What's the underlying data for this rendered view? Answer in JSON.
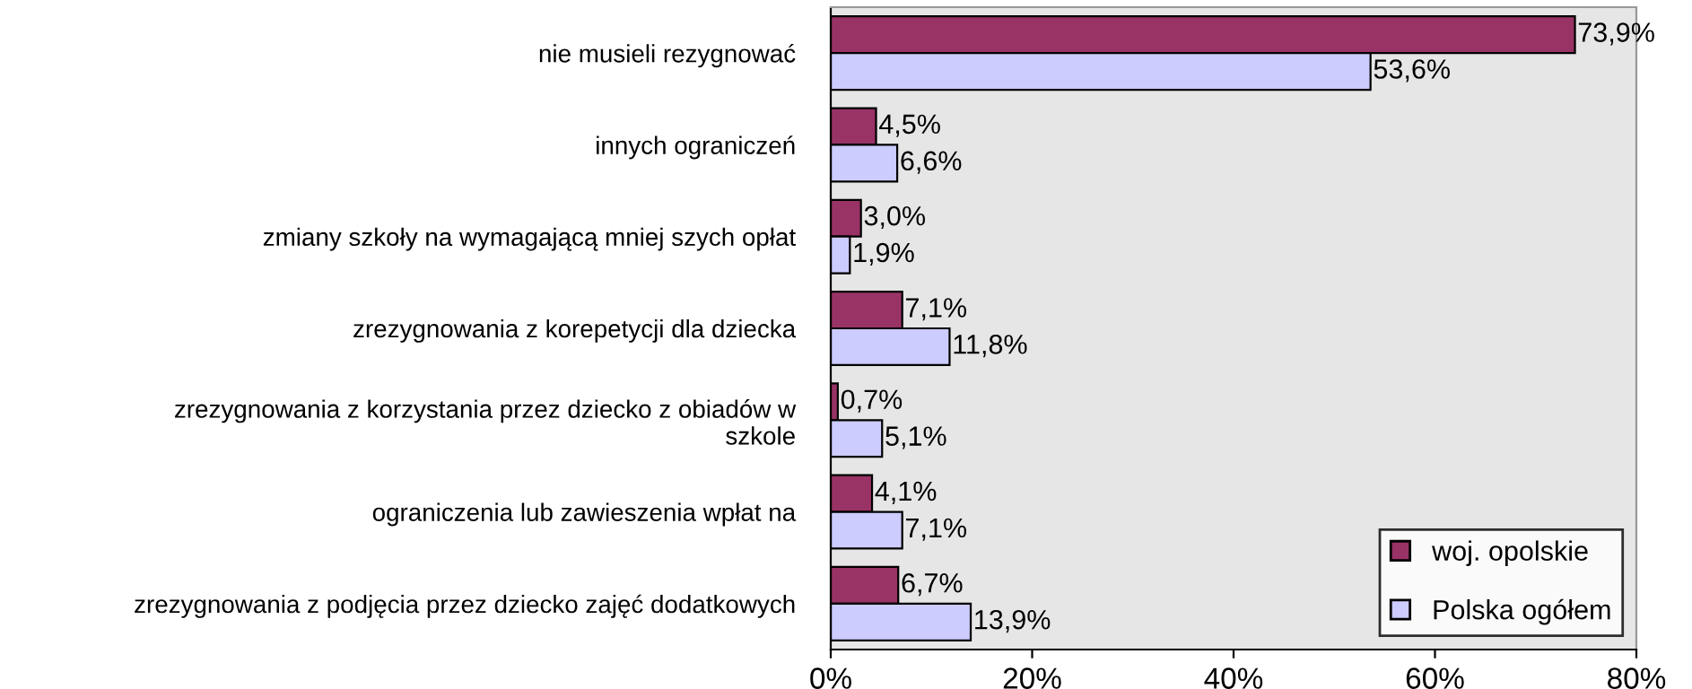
{
  "chart_data": {
    "type": "bar",
    "orientation": "horizontal",
    "categories": [
      "nie musieli rezygnować",
      "innych ograniczeń",
      "zmiany szkoły na wymagającą mniej szych opłat",
      "zrezygnowania z korepetycji dla dziecka",
      "zrezygnowania z korzystania przez dziecko z obiadów w\nszkole",
      "ograniczenia lub zawieszenia wpłat na",
      "zrezygnowania z podjęcia przez dziecko zajęć dodatkowych"
    ],
    "series": [
      {
        "name": "woj. opolskie",
        "color": "#993366",
        "values": [
          73.9,
          4.5,
          3.0,
          7.1,
          0.7,
          4.1,
          6.7
        ],
        "value_labels": [
          "73,9%",
          "4,5%",
          "3,0%",
          "7,1%",
          "0,7%",
          "4,1%",
          "6,7%"
        ]
      },
      {
        "name": "Polska ogółem",
        "color": "#ccccff",
        "values": [
          53.6,
          6.6,
          1.9,
          11.8,
          5.1,
          7.1,
          13.9
        ],
        "value_labels": [
          "53,6%",
          "6,6%",
          "1,9%",
          "11,8%",
          "5,1%",
          "7,1%",
          "13,9%"
        ]
      }
    ],
    "xlim": [
      0,
      80
    ],
    "xticks": [
      {
        "value": 0,
        "label": "0%"
      },
      {
        "value": 20,
        "label": "20%"
      },
      {
        "value": 40,
        "label": "40%"
      },
      {
        "value": 60,
        "label": "60%"
      },
      {
        "value": 80,
        "label": "80%"
      }
    ],
    "grid": false,
    "legend": "bottom right"
  }
}
